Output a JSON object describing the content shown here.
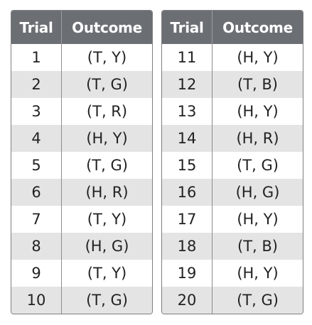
{
  "tables": [
    {
      "headers": [
        "Trial",
        "Outcome"
      ],
      "rows": [
        [
          "1",
          "(T, Y)"
        ],
        [
          "2",
          "(T, G)"
        ],
        [
          "3",
          "(T, R)"
        ],
        [
          "4",
          "(H, Y)"
        ],
        [
          "5",
          "(T, G)"
        ],
        [
          "6",
          "(H, R)"
        ],
        [
          "7",
          "(T, Y)"
        ],
        [
          "8",
          "(H, G)"
        ],
        [
          "9",
          "(T, Y)"
        ],
        [
          "10",
          "(T, G)"
        ]
      ]
    },
    {
      "headers": [
        "Trial",
        "Outcome"
      ],
      "rows": [
        [
          "11",
          "(H, Y)"
        ],
        [
          "12",
          "(T, B)"
        ],
        [
          "13",
          "(H, Y)"
        ],
        [
          "14",
          "(H, R)"
        ],
        [
          "15",
          "(T, G)"
        ],
        [
          "16",
          "(H, G)"
        ],
        [
          "17",
          "(H, Y)"
        ],
        [
          "18",
          "(T, B)"
        ],
        [
          "19",
          "(H, Y)"
        ],
        [
          "20",
          "(T, G)"
        ]
      ]
    }
  ],
  "colors": {
    "header_bg": "#6b6e73",
    "header_text": "#ffffff",
    "alt_row_bg": "#e4e4e4",
    "row_bg": "#ffffff",
    "border": "#7f7f7f"
  }
}
